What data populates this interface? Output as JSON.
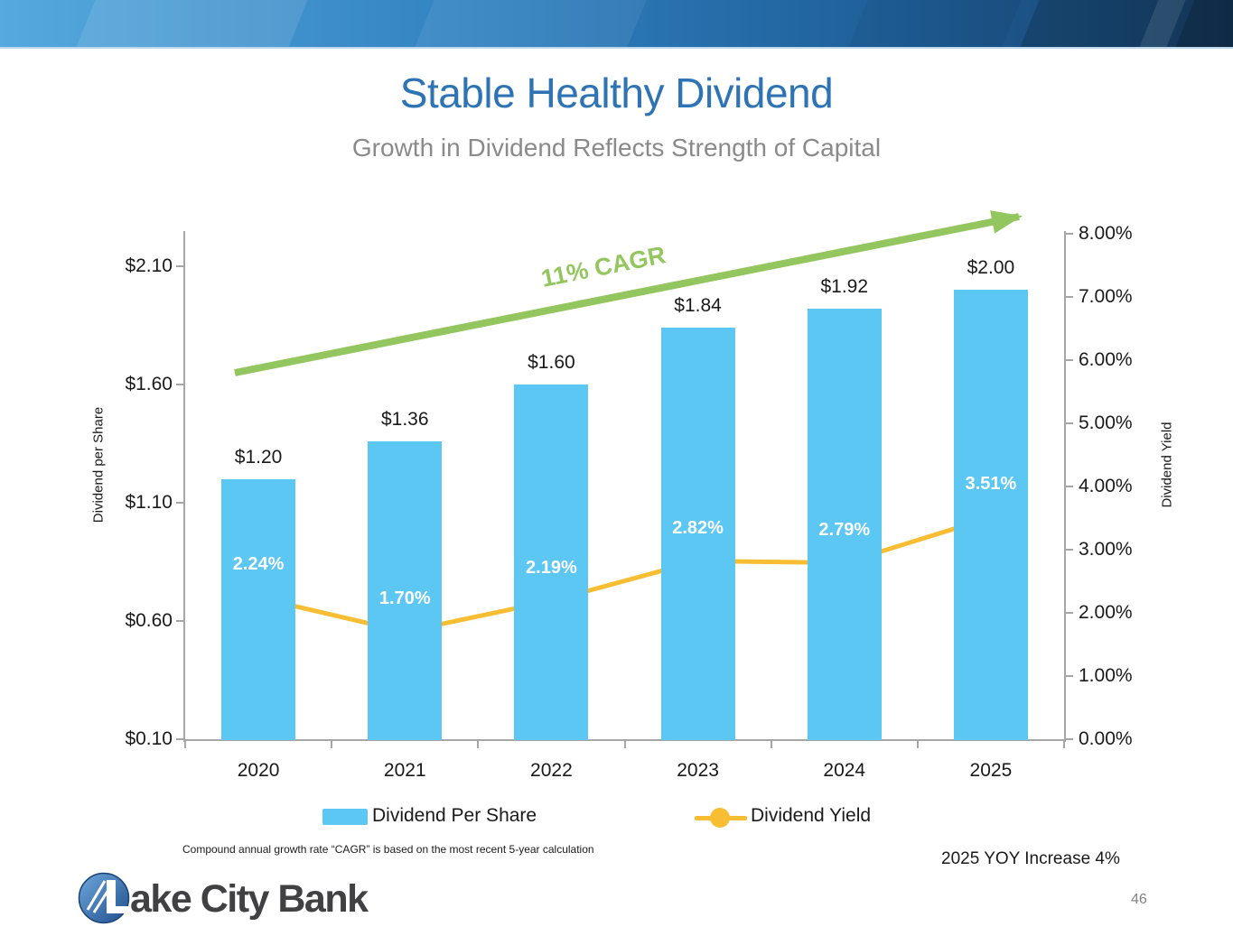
{
  "slide": {
    "title": "Stable Healthy Dividend",
    "subtitle": "Growth in Dividend Reflects Strength of Capital",
    "footnote": "Compound annual growth rate “CAGR” is based on the most recent 5-year calculation",
    "yoy_note": "2025 YOY Increase 4%",
    "page_number": "46"
  },
  "logo": {
    "name": "Lake City Bank",
    "text_after_mark": "ake City Bank"
  },
  "colors": {
    "title_blue": "#2E74B5",
    "subtitle_gray": "#8A8A8A",
    "bar_blue": "#5CC7F2",
    "line_yellow": "#F7BE33",
    "arrow_green": "#94C65F",
    "axis_line_gray": "#A6A6A6",
    "label_black": "#1A1A1A",
    "page_number_gray": "#808080",
    "logo_text_gray": "#414042",
    "banner_left_blue": "#55A9DD",
    "banner_right_blue": "#173F66"
  },
  "chart_data": {
    "type": "bar+line",
    "categories": [
      "2020",
      "2021",
      "2022",
      "2023",
      "2024",
      "2025"
    ],
    "series": [
      {
        "name": "Dividend Per Share",
        "type": "bar",
        "axis": "left",
        "values": [
          1.2,
          1.36,
          1.6,
          1.84,
          1.92,
          2.0
        ],
        "labels": [
          "$1.20",
          "$1.36",
          "$1.60",
          "$1.84",
          "$1.92",
          "$2.00"
        ]
      },
      {
        "name": "Dividend Yield",
        "type": "line",
        "axis": "right",
        "values": [
          2.24,
          1.7,
          2.19,
          2.82,
          2.79,
          3.51
        ],
        "labels": [
          "2.24%",
          "1.70%",
          "2.19%",
          "2.82%",
          "2.79%",
          "3.51%"
        ]
      }
    ],
    "left_axis": {
      "title": "Dividend per Share",
      "range": [
        0.1,
        2.25
      ],
      "tick_values": [
        0.1,
        0.6,
        1.1,
        1.6,
        2.1
      ],
      "tick_labels": [
        "$0.10",
        "$0.60",
        "$1.10",
        "$1.60",
        "$2.10"
      ]
    },
    "right_axis": {
      "title": "Dividend Yield",
      "range": [
        0,
        8.04
      ],
      "tick_values": [
        0,
        1,
        2,
        3,
        4,
        5,
        6,
        7,
        8
      ],
      "tick_labels": [
        "0.00%",
        "1.00%",
        "2.00%",
        "3.00%",
        "4.00%",
        "5.00%",
        "6.00%",
        "7.00%",
        "8.00%"
      ]
    },
    "annotation": {
      "text": "11% CAGR"
    },
    "legend": {
      "items": [
        "Dividend Per Share",
        "Dividend Yield"
      ],
      "position": "bottom"
    },
    "grid": false
  }
}
